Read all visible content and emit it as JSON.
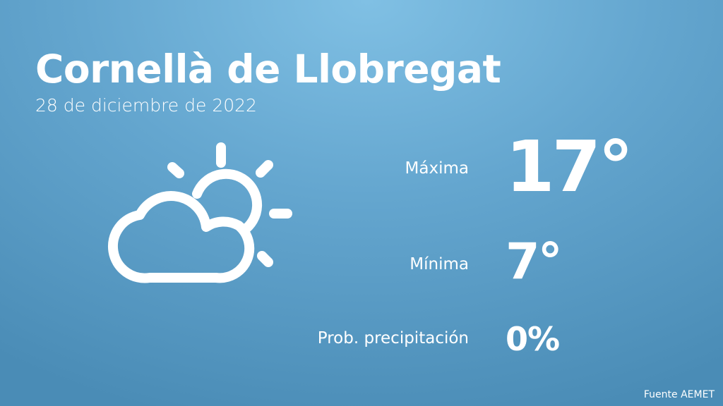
{
  "city": "Cornellà de Llobregat",
  "date": "28 de diciembre de 2022",
  "weather_icon": "partly-cloudy-icon",
  "max": {
    "label": "Máxima",
    "value": "17°"
  },
  "min": {
    "label": "Mínima",
    "value": "7°"
  },
  "precip": {
    "label": "Prob. precipitación",
    "value": "0%"
  },
  "source": "Fuente AEMET",
  "colors": {
    "background_light": "#80c0e4",
    "background_dark": "#4a8cb6",
    "foreground": "#ffffff"
  }
}
